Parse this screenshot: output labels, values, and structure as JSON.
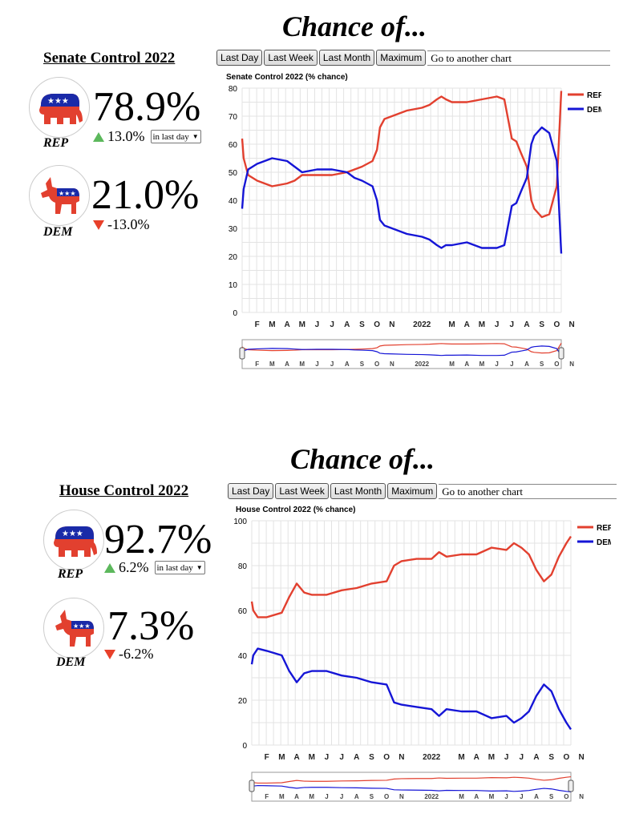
{
  "colors": {
    "rep": "#e2402f",
    "dem": "#1515d6",
    "grid": "#e3e3e3",
    "up": "#5cb85c",
    "down": "#e8402a"
  },
  "panels": [
    {
      "heading": "Chance of...",
      "race_title": "Senate Control 2022",
      "buttons": [
        "Last Day",
        "Last Week",
        "Last Month",
        "Maximum"
      ],
      "goto_label": "Go to another chart",
      "rep": {
        "label": "REP",
        "pct": "78.9%",
        "change": "13.0%",
        "direction": "up"
      },
      "dem": {
        "label": "DEM",
        "pct": "21.0%",
        "change": "-13.0%",
        "direction": "down"
      },
      "period_select": "in last day"
    },
    {
      "heading": "Chance of...",
      "race_title": "House Control 2022",
      "buttons": [
        "Last Day",
        "Last Week",
        "Last Month",
        "Maximum"
      ],
      "goto_label": "Go to another chart",
      "rep": {
        "label": "REP",
        "pct": "92.7%",
        "change": "6.2%",
        "direction": "up"
      },
      "dem": {
        "label": "DEM",
        "pct": "7.3%",
        "change": "-6.2%",
        "direction": "down"
      },
      "period_select": "in last day"
    }
  ],
  "chart_data": [
    {
      "type": "line",
      "title": "Senate Control 2022 (% chance)",
      "xlabel": "",
      "ylabel": "",
      "ylim": [
        0,
        80
      ],
      "yticks": [
        0,
        10,
        20,
        30,
        40,
        50,
        60,
        70,
        80
      ],
      "xlim": [
        0,
        21.3
      ],
      "xticks": [
        {
          "x": 1,
          "label": "F"
        },
        {
          "x": 2,
          "label": "M"
        },
        {
          "x": 3,
          "label": "A"
        },
        {
          "x": 4,
          "label": "M"
        },
        {
          "x": 5,
          "label": "J"
        },
        {
          "x": 6,
          "label": "J"
        },
        {
          "x": 7,
          "label": "A"
        },
        {
          "x": 8,
          "label": "S"
        },
        {
          "x": 9,
          "label": "O"
        },
        {
          "x": 10,
          "label": "N"
        },
        {
          "x": 12,
          "label": "2022"
        },
        {
          "x": 14,
          "label": "M"
        },
        {
          "x": 15,
          "label": "A"
        },
        {
          "x": 16,
          "label": "M"
        },
        {
          "x": 17,
          "label": "J"
        },
        {
          "x": 18,
          "label": "J"
        },
        {
          "x": 19,
          "label": "A"
        },
        {
          "x": 20,
          "label": "S"
        },
        {
          "x": 21,
          "label": "O"
        },
        {
          "x": 22,
          "label": "N"
        }
      ],
      "grid": true,
      "legend_position": "top-right",
      "series": [
        {
          "name": "REP",
          "color": "#e2402f",
          "x": [
            0,
            0.1,
            0.4,
            1,
            2,
            3,
            3.5,
            4,
            5,
            6,
            7,
            7.5,
            8,
            8.7,
            9,
            9.2,
            9.5,
            10,
            11,
            12,
            12.5,
            13,
            13.3,
            13.6,
            14,
            15,
            16,
            17,
            17.5,
            18,
            18.3,
            18.6,
            19,
            19.3,
            19.5,
            20,
            20.5,
            21,
            21.3
          ],
          "y": [
            62,
            55,
            49,
            47,
            45,
            46,
            47,
            49,
            49,
            49,
            50,
            51,
            52,
            54,
            58,
            66,
            69,
            70,
            72,
            73,
            74,
            76,
            77,
            76,
            75,
            75,
            76,
            77,
            76,
            62,
            61,
            57,
            52,
            40,
            37,
            34,
            35,
            45,
            79
          ]
        },
        {
          "name": "DEM",
          "color": "#1515d6",
          "x": [
            0,
            0.1,
            0.4,
            1,
            2,
            3,
            3.5,
            4,
            5,
            6,
            7,
            7.5,
            8,
            8.7,
            9,
            9.2,
            9.5,
            10,
            11,
            12,
            12.5,
            13,
            13.3,
            13.6,
            14,
            15,
            16,
            17,
            17.5,
            18,
            18.3,
            18.6,
            19,
            19.3,
            19.5,
            20,
            20.5,
            21,
            21.3
          ],
          "y": [
            37,
            44,
            51,
            53,
            55,
            54,
            52,
            50,
            51,
            51,
            50,
            48,
            47,
            45,
            40,
            33,
            31,
            30,
            28,
            27,
            26,
            24,
            23,
            24,
            24,
            25,
            23,
            23,
            24,
            38,
            39,
            43,
            48,
            60,
            63,
            66,
            64,
            54,
            21
          ]
        }
      ]
    },
    {
      "type": "line",
      "title": "House Control 2022 (% chance)",
      "xlabel": "",
      "ylabel": "",
      "ylim": [
        0,
        100
      ],
      "yticks": [
        0,
        20,
        40,
        60,
        80,
        100
      ],
      "xlim": [
        0,
        21.3
      ],
      "xticks": [
        {
          "x": 1,
          "label": "F"
        },
        {
          "x": 2,
          "label": "M"
        },
        {
          "x": 3,
          "label": "A"
        },
        {
          "x": 4,
          "label": "M"
        },
        {
          "x": 5,
          "label": "J"
        },
        {
          "x": 6,
          "label": "J"
        },
        {
          "x": 7,
          "label": "A"
        },
        {
          "x": 8,
          "label": "S"
        },
        {
          "x": 9,
          "label": "O"
        },
        {
          "x": 10,
          "label": "N"
        },
        {
          "x": 12,
          "label": "2022"
        },
        {
          "x": 14,
          "label": "M"
        },
        {
          "x": 15,
          "label": "A"
        },
        {
          "x": 16,
          "label": "M"
        },
        {
          "x": 17,
          "label": "J"
        },
        {
          "x": 18,
          "label": "J"
        },
        {
          "x": 19,
          "label": "A"
        },
        {
          "x": 20,
          "label": "S"
        },
        {
          "x": 21,
          "label": "O"
        },
        {
          "x": 22,
          "label": "N"
        }
      ],
      "grid": true,
      "legend_position": "top-right",
      "series": [
        {
          "name": "REP",
          "color": "#e2402f",
          "x": [
            0,
            0.1,
            0.4,
            1,
            2,
            2.5,
            3,
            3.5,
            4,
            5,
            6,
            7,
            8,
            9,
            9.5,
            10,
            11,
            12,
            12.5,
            13,
            14,
            15,
            16,
            17,
            17.5,
            18,
            18.5,
            19,
            19.5,
            20,
            20.5,
            21,
            21.3
          ],
          "y": [
            64,
            60,
            57,
            57,
            59,
            66,
            72,
            68,
            67,
            67,
            69,
            70,
            72,
            73,
            80,
            82,
            83,
            83,
            86,
            84,
            85,
            85,
            88,
            87,
            90,
            88,
            85,
            78,
            73,
            76,
            84,
            90,
            93
          ]
        },
        {
          "name": "DEM",
          "color": "#1515d6",
          "x": [
            0,
            0.1,
            0.4,
            1,
            2,
            2.5,
            3,
            3.5,
            4,
            5,
            6,
            7,
            8,
            9,
            9.5,
            10,
            11,
            12,
            12.5,
            13,
            14,
            15,
            16,
            17,
            17.5,
            18,
            18.5,
            19,
            19.5,
            20,
            20.5,
            21,
            21.3
          ],
          "y": [
            36,
            40,
            43,
            42,
            40,
            33,
            28,
            32,
            33,
            33,
            31,
            30,
            28,
            27,
            19,
            18,
            17,
            16,
            13,
            16,
            15,
            15,
            12,
            13,
            10,
            12,
            15,
            22,
            27,
            24,
            16,
            10,
            7
          ]
        }
      ]
    }
  ]
}
